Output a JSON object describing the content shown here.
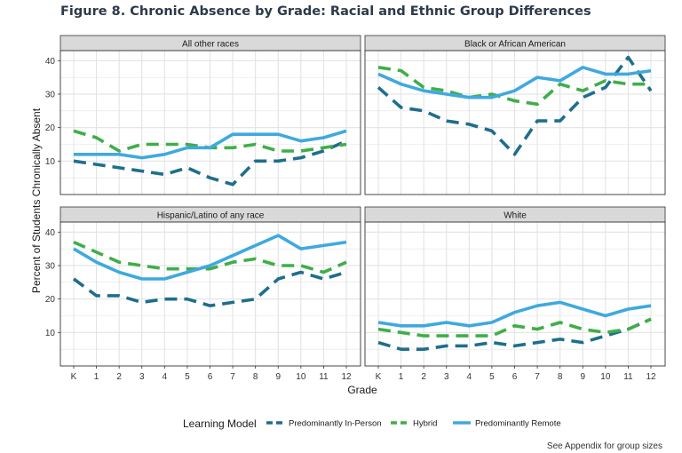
{
  "title": "Figure 8. Chronic Absence by Grade: Racial and Ethnic Group Differences",
  "footnote": "See Appendix for group sizes",
  "colors": {
    "in_person": "#1f6e8c",
    "hybrid": "#3fae49",
    "remote": "#3fa9df",
    "panel_bg": "#ffffff",
    "grid": "#e3e3e3",
    "strip_bg": "#d9d9d9"
  },
  "chart_data": {
    "type": "line",
    "xlabel": "Grade",
    "ylabel": "Percent of Students Chronically Absent",
    "categories": [
      "K",
      "1",
      "2",
      "3",
      "4",
      "5",
      "6",
      "7",
      "8",
      "9",
      "10",
      "11",
      "12"
    ],
    "ylim": [
      0,
      43
    ],
    "yticks": [
      10,
      20,
      30,
      40
    ],
    "grid": true,
    "legend": {
      "title": "Learning Model",
      "position": "bottom",
      "entries": [
        "Predominantly In-Person",
        "Hybrid",
        "Predominantly Remote"
      ]
    },
    "facets": [
      {
        "label": "All other races",
        "series": [
          {
            "name": "Predominantly In-Person",
            "values": [
              10,
              9,
              8,
              7,
              6,
              8,
              5,
              3,
              10,
              10,
              11,
              13,
              16
            ]
          },
          {
            "name": "Hybrid",
            "values": [
              19,
              17,
              13,
              15,
              15,
              15,
              14,
              14,
              15,
              13,
              13,
              14,
              15
            ]
          },
          {
            "name": "Predominantly Remote",
            "values": [
              12,
              12,
              12,
              11,
              12,
              14,
              14,
              18,
              18,
              18,
              16,
              17,
              19
            ]
          }
        ]
      },
      {
        "label": "Black or African American",
        "series": [
          {
            "name": "Predominantly In-Person",
            "values": [
              32,
              26,
              25,
              22,
              21,
              19,
              12,
              22,
              22,
              29,
              32,
              41,
              31
            ]
          },
          {
            "name": "Hybrid",
            "values": [
              38,
              37,
              32,
              31,
              29,
              30,
              28,
              27,
              33,
              31,
              34,
              33,
              33
            ]
          },
          {
            "name": "Predominantly Remote",
            "values": [
              36,
              33,
              31,
              30,
              29,
              29,
              31,
              35,
              34,
              38,
              36,
              36,
              37
            ]
          }
        ]
      },
      {
        "label": "Hispanic/Latino of any race",
        "series": [
          {
            "name": "Predominantly In-Person",
            "values": [
              26,
              21,
              21,
              19,
              20,
              20,
              18,
              19,
              20,
              26,
              28,
              26,
              28
            ]
          },
          {
            "name": "Hybrid",
            "values": [
              37,
              34,
              31,
              30,
              29,
              29,
              29,
              31,
              32,
              30,
              30,
              28,
              31
            ]
          },
          {
            "name": "Predominantly Remote",
            "values": [
              35,
              31,
              28,
              26,
              26,
              28,
              30,
              33,
              36,
              39,
              35,
              36,
              37
            ]
          }
        ]
      },
      {
        "label": "White",
        "series": [
          {
            "name": "Predominantly In-Person",
            "values": [
              7,
              5,
              5,
              6,
              6,
              7,
              6,
              7,
              8,
              7,
              9,
              11,
              14
            ]
          },
          {
            "name": "Hybrid",
            "values": [
              11,
              10,
              9,
              9,
              9,
              9,
              12,
              11,
              13,
              11,
              10,
              11,
              14
            ]
          },
          {
            "name": "Predominantly Remote",
            "values": [
              13,
              12,
              12,
              13,
              12,
              13,
              16,
              18,
              19,
              17,
              15,
              17,
              18
            ]
          }
        ]
      }
    ]
  }
}
